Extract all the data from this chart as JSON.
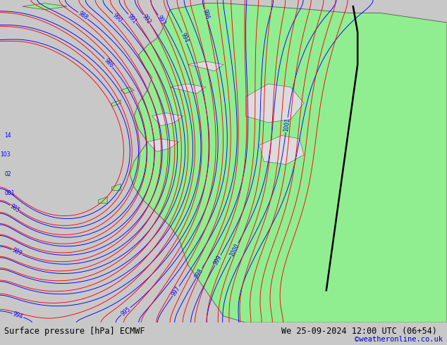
{
  "title_left": "Surface pressure [hPa] ECMWF",
  "title_right": "We 25-09-2024 12:00 UTC (06+54)",
  "copyright": "©weatheronline.co.uk",
  "bg_color": "#c8c8c8",
  "land_color": "#90ee90",
  "sea_color": "#dcdcdc",
  "contour_color_blue": "#0000ff",
  "contour_color_red": "#ff0000",
  "contour_color_black": "#000000",
  "bottom_bar_color": "#ffffff",
  "title_fontsize": 9,
  "copyright_color": "#0000cc",
  "figsize": [
    6.34,
    4.9
  ],
  "dpi": 100
}
